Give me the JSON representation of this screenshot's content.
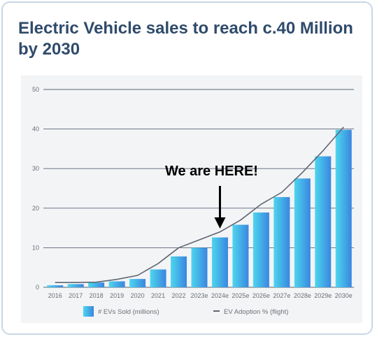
{
  "card": {
    "title": "Electric Vehicle sales to reach c.40 Million by 2030"
  },
  "colors": {
    "title": "#2f4b6b",
    "bar_light": "#4dd6ee",
    "bar_dark": "#3a86e0",
    "line": "#5f6672",
    "grid": "#5a6478",
    "border": "#c9d6e8"
  },
  "chart_data": {
    "type": "bar",
    "categories": [
      "2016",
      "2017",
      "2018",
      "2019",
      "2020",
      "2021",
      "2022",
      "2023e",
      "2024e",
      "2025e",
      "2026e",
      "2027e",
      "2028e",
      "2029e",
      "2030e"
    ],
    "ylim": [
      0,
      50
    ],
    "yticks": [
      0,
      10,
      20,
      30,
      40,
      50
    ],
    "grid": true,
    "legend_position": "bottom",
    "series": [
      {
        "name": "# EVs Sold (millions)",
        "type": "bar",
        "values": [
          0.5,
          0.8,
          1.2,
          1.5,
          2.1,
          4.5,
          7.8,
          10.0,
          12.6,
          15.8,
          18.9,
          22.8,
          27.5,
          33.1,
          39.8
        ]
      },
      {
        "name": "EV Adoption % (flight)",
        "type": "line",
        "values": [
          1.2,
          1.2,
          1.3,
          2.0,
          3.0,
          6.0,
          10.0,
          12.0,
          14.0,
          17.0,
          21.0,
          24.0,
          29.0,
          34.5,
          40.5
        ]
      }
    ],
    "annotation": {
      "text": "We are HERE!",
      "category": "2024e"
    }
  }
}
